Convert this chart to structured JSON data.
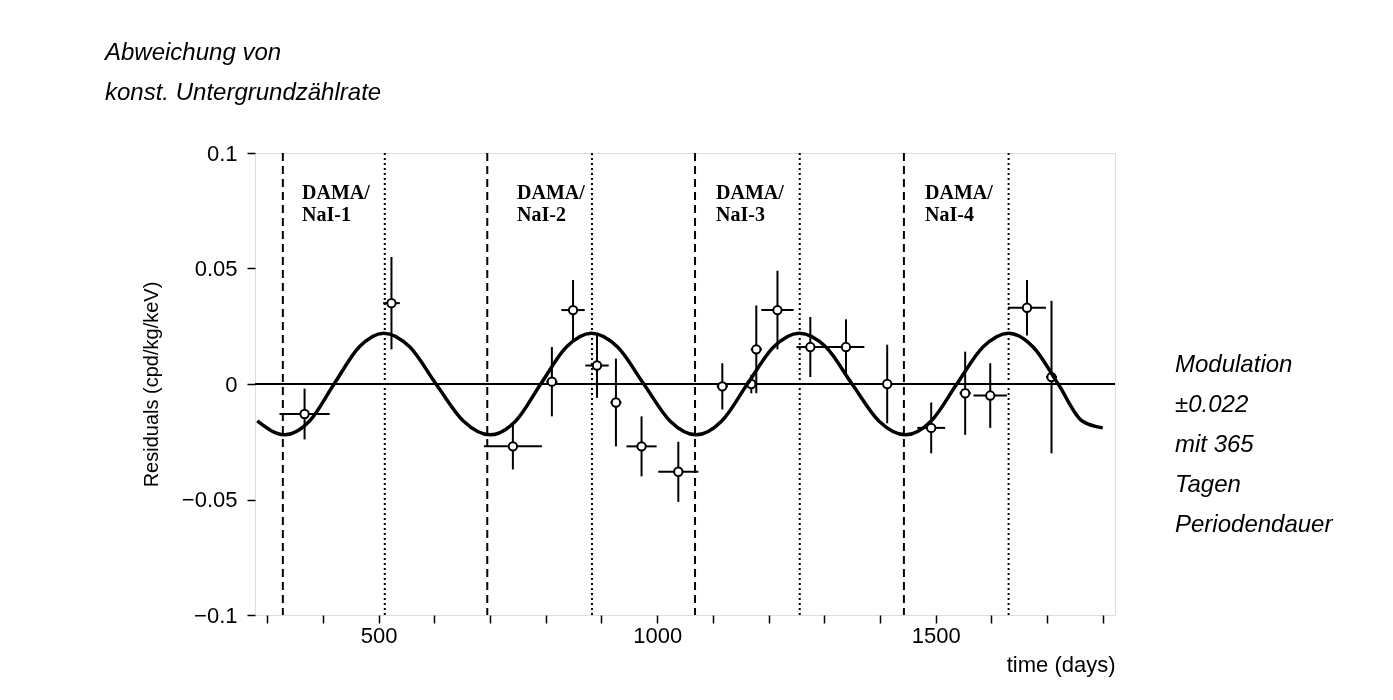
{
  "chart_data": {
    "type": "scatter",
    "xlabel": "time (days)",
    "ylabel": "Residuals (cpd/kg/keV)",
    "xlim": [
      278,
      1822
    ],
    "ylim": [
      -0.1,
      0.1
    ],
    "xticks": [
      {
        "value": 300,
        "label": null
      },
      {
        "value": 400,
        "label": null
      },
      500,
      {
        "value": 600,
        "label": null
      },
      {
        "value": 700,
        "label": null
      },
      {
        "value": 800,
        "label": null
      },
      {
        "value": 900,
        "label": null
      },
      1000,
      {
        "value": 1100,
        "label": null
      },
      {
        "value": 1200,
        "label": null
      },
      {
        "value": 1300,
        "label": null
      },
      {
        "value": 1400,
        "label": null
      },
      1500,
      {
        "value": 1600,
        "label": null
      },
      {
        "value": 1700,
        "label": null
      },
      {
        "value": 1800,
        "label": null
      }
    ],
    "yticks": [
      -0.1,
      -0.05,
      0,
      0.05,
      0.1
    ],
    "grid": false,
    "series": [
      {
        "color": "#000000",
        "marker": "circle",
        "x": [
          367,
          523,
          741,
          811,
          849,
          892,
          926,
          972,
          1038,
          1117,
          1169,
          1178,
          1216,
          1275,
          1339,
          1413,
          1492,
          1553,
          1598,
          1664,
          1708
        ],
        "values": [
          -0.013,
          0.035,
          -0.027,
          0.001,
          0.032,
          0.008,
          -0.008,
          -0.027,
          -0.038,
          -0.001,
          0,
          0.015,
          0.032,
          0.016,
          0.016,
          0,
          -0.019,
          -0.004,
          -0.005,
          0.033,
          0.003
        ],
        "errors": [
          0.011,
          0.02,
          0.01,
          0.015,
          0.013,
          0.014,
          0.019,
          0.013,
          0.013,
          0.01,
          0.004,
          0.019,
          0.017,
          0.013,
          0.012,
          0.017,
          0.011,
          0.018,
          0.014,
          0.012,
          0.033
        ],
        "xerrors": [
          45,
          15,
          52,
          10,
          21,
          21,
          10,
          27,
          36,
          10,
          10,
          10,
          29,
          25,
          33,
          10,
          25,
          10,
          30,
          34,
          10
        ]
      },
      {
        "type": "line",
        "color": "#000000",
        "line_style": "solid",
        "x": [
          282,
          331,
          376,
          420,
          465,
          509,
          556,
          603,
          652,
          700,
          746,
          791,
          837,
          882,
          929,
          976,
          1023,
          1070,
          1116,
          1162,
          1209,
          1255,
          1303,
          1350,
          1398,
          1446,
          1492,
          1538,
          1585,
          1631,
          1675,
          1720,
          1763,
          1800
        ],
        "values": [
          -0.016,
          -0.022,
          -0.016,
          0,
          0.016,
          0.022,
          0.016,
          0,
          -0.016,
          -0.022,
          -0.016,
          0,
          0.016,
          0.022,
          0.016,
          0,
          -0.016,
          -0.022,
          -0.016,
          0,
          0.016,
          0.022,
          0.016,
          0,
          -0.016,
          -0.022,
          -0.016,
          0,
          0.016,
          0.022,
          0.016,
          0,
          -0.016,
          -0.019
        ]
      }
    ],
    "ref_lines": [
      {
        "axis": "y",
        "value": 0,
        "line_style": "solid"
      },
      {
        "axis": "x",
        "value": 328,
        "line_style": "dashed"
      },
      {
        "axis": "x",
        "value": 511,
        "line_style": "dotted"
      },
      {
        "axis": "x",
        "value": 695,
        "line_style": "dashed"
      },
      {
        "axis": "x",
        "value": 883,
        "line_style": "dotted"
      },
      {
        "axis": "x",
        "value": 1068,
        "line_style": "dashed"
      },
      {
        "axis": "x",
        "value": 1256,
        "line_style": "dotted"
      },
      {
        "axis": "x",
        "value": 1443,
        "line_style": "dashed"
      },
      {
        "axis": "x",
        "value": 1631,
        "line_style": "dotted"
      }
    ],
    "annotations": [
      "DAMA/\nNaI-1",
      "DAMA/\nNaI-2",
      "DAMA/\nNaI-3",
      "DAMA/\nNaI-4",
      "Abweichung von\nkonst. Untergrundzählrate",
      "Modulation\n±0.022\nmit 365\nTagen\nPeriodendauer"
    ]
  }
}
